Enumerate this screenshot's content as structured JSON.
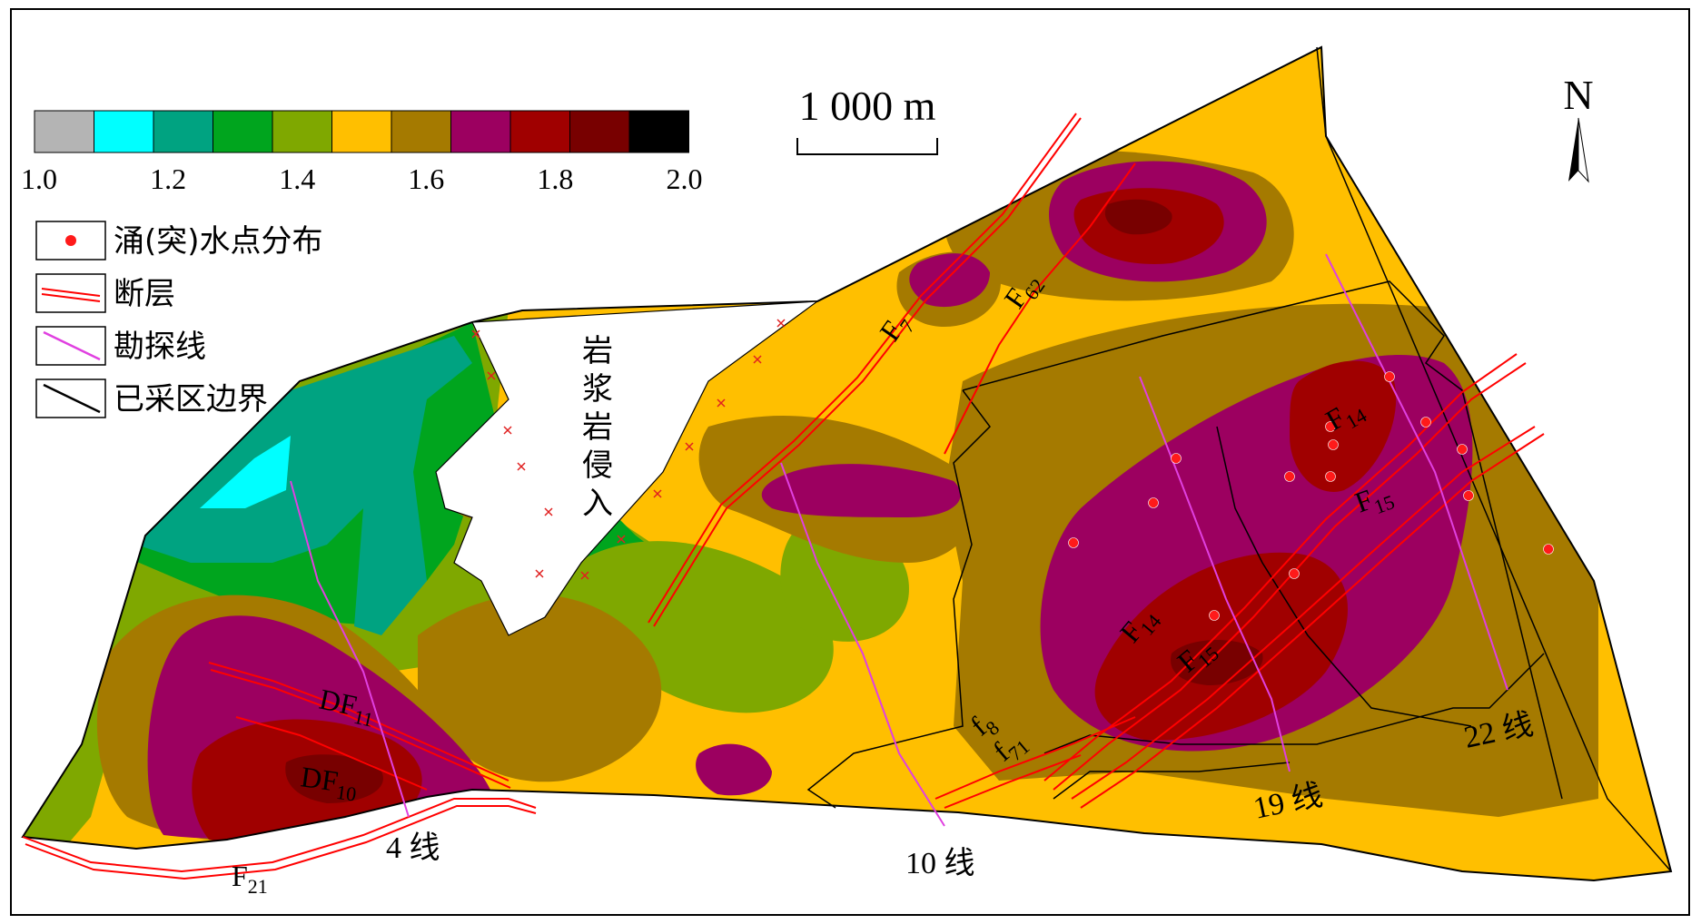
{
  "legend": {
    "colors": [
      "#b4b4b4",
      "#00ffff",
      "#00a381",
      "#00a51e",
      "#7fa800",
      "#ffbf00",
      "#a57a00",
      "#9c0060",
      "#a00000",
      "#780000",
      "#000000"
    ],
    "ticks": [
      "1.0",
      "1.2",
      "1.4",
      "1.6",
      "1.8",
      "2.0"
    ],
    "symbols": {
      "water_inrush": "涌(突)水点分布",
      "fault": "断层",
      "exploration_line": "勘探线",
      "mined_boundary": "已采区边界"
    }
  },
  "scale_bar": {
    "label": "1 000 m"
  },
  "north_arrow": {
    "label": "N"
  },
  "intrusion_label": [
    "岩",
    "浆",
    "岩",
    "侵",
    "入"
  ],
  "faults": {
    "f7": {
      "main": "F",
      "sub": "7"
    },
    "f62": {
      "main": "F",
      "sub": "62"
    },
    "f14_top": {
      "main": "F",
      "sub": "14"
    },
    "f15_top": {
      "main": "F",
      "sub": "15"
    },
    "f14_mid": {
      "main": "F",
      "sub": "14"
    },
    "f15_mid": {
      "main": "F",
      "sub": "15"
    },
    "df11": {
      "main": "DF",
      "sub": "11"
    },
    "df10": {
      "main": "DF",
      "sub": "10"
    },
    "f8": {
      "main": "f",
      "sub": "8"
    },
    "f71": {
      "main": "f",
      "sub": "71"
    },
    "f21": {
      "main": "F",
      "sub": "21"
    }
  },
  "lines": {
    "l4": "4 线",
    "l10": "10 线",
    "l19": "19 线",
    "l22": "22 线"
  },
  "colors": {
    "fault": "#ff0000",
    "exploration": "#e040e0",
    "boundary": "#000000",
    "inrush_point": "#ff1a1a"
  }
}
